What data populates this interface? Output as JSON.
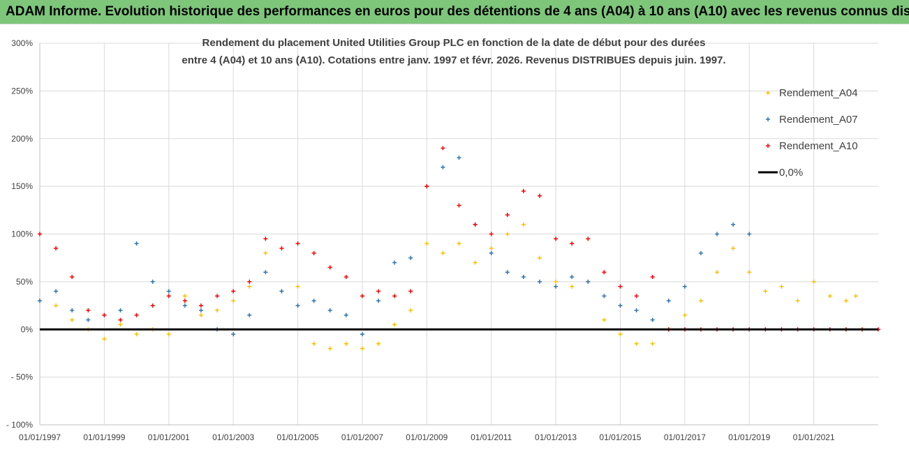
{
  "banner": {
    "title": "ADAM Informe. Evolution historique des performances en euros pour des détentions de 4 ans (A04) à 10 ans (A10) avec les revenus connus distribués"
  },
  "colors": {
    "banner": "#7dc67a",
    "A04": "#ffc000",
    "A07": "#2e75b6",
    "A10": "#ff0000",
    "zero": "#000000",
    "grid": "#d9d9d9"
  },
  "chart_data": {
    "type": "scatter",
    "title_line1": "Rendement du placement United Utilities Group PLC en fonction de la date de début pour des durées",
    "title_line2": "entre 4 (A04) et 10 ans (A10). Cotations entre janv. 1997 et févr. 2026. Revenus DISTRIBUES depuis juin. 1997.",
    "ylim": [
      -100,
      300
    ],
    "yticks": [
      300,
      250,
      200,
      150,
      100,
      50,
      0,
      -50,
      -100
    ],
    "ytick_labels": [
      "300%",
      "250%",
      "200%",
      "150%",
      "100%",
      "50%",
      "0%",
      "- 50%",
      "- 100%"
    ],
    "xlim": [
      1997.0,
      2023.0
    ],
    "xticks": [
      1997,
      1999,
      2001,
      2003,
      2005,
      2007,
      2009,
      2011,
      2013,
      2015,
      2017,
      2019,
      2021
    ],
    "xtick_labels": [
      "01/01/1997",
      "01/01/1999",
      "01/01/2001",
      "01/01/2003",
      "01/01/2005",
      "01/01/2007",
      "01/01/2009",
      "01/01/2011",
      "01/01/2013",
      "01/01/2015",
      "01/01/2017",
      "01/01/2019",
      "01/01/2021"
    ],
    "legend": [
      "Rendement_A04",
      "Rendement_A07",
      "Rendement_A10",
      "0,0%"
    ],
    "series": [
      {
        "name": "Rendement_A04",
        "x": [
          1997.0,
          1997.5,
          1998.0,
          1998.5,
          1999.0,
          1999.5,
          2000.0,
          2000.5,
          2001.0,
          2001.5,
          2002.0,
          2002.5,
          2003.0,
          2003.5,
          2004.0,
          2004.5,
          2005.0,
          2005.5,
          2006.0,
          2006.5,
          2007.0,
          2007.5,
          2008.0,
          2008.5,
          2009.0,
          2009.5,
          2010.0,
          2010.5,
          2011.0,
          2011.5,
          2012.0,
          2012.5,
          2013.0,
          2013.5,
          2014.0,
          2014.5,
          2015.0,
          2015.5,
          2016.0,
          2016.5,
          2017.0,
          2017.5,
          2018.0,
          2018.5,
          2019.0,
          2019.5,
          2020.0,
          2020.5,
          2021.0,
          2021.5,
          2022.0,
          2022.3
        ],
        "values": [
          30,
          25,
          10,
          0,
          -10,
          5,
          -5,
          0,
          -5,
          35,
          15,
          20,
          30,
          45,
          80,
          40,
          45,
          -15,
          -20,
          -15,
          -20,
          -15,
          5,
          20,
          90,
          80,
          90,
          70,
          85,
          100,
          110,
          75,
          50,
          45,
          50,
          10,
          -5,
          -15,
          -15,
          0,
          15,
          30,
          60,
          85,
          60,
          40,
          45,
          30,
          50,
          35,
          30,
          35
        ]
      },
      {
        "name": "Rendement_A07",
        "x": [
          1997.0,
          1997.5,
          1998.0,
          1998.5,
          1999.0,
          1999.5,
          2000.0,
          2000.5,
          2001.0,
          2001.5,
          2002.0,
          2002.5,
          2003.0,
          2003.5,
          2004.0,
          2004.5,
          2005.0,
          2005.5,
          2006.0,
          2006.5,
          2007.0,
          2007.5,
          2008.0,
          2008.5,
          2009.0,
          2009.5,
          2010.0,
          2010.5,
          2011.0,
          2011.5,
          2012.0,
          2012.5,
          2013.0,
          2013.5,
          2014.0,
          2014.5,
          2015.0,
          2015.5,
          2016.0,
          2016.5,
          2017.0,
          2017.5,
          2018.0,
          2018.5,
          2019.0
        ],
        "values": [
          30,
          40,
          20,
          10,
          15,
          20,
          90,
          50,
          40,
          25,
          20,
          0,
          -5,
          15,
          60,
          40,
          25,
          30,
          20,
          15,
          -5,
          30,
          70,
          75,
          150,
          170,
          180,
          110,
          80,
          60,
          55,
          50,
          45,
          55,
          50,
          35,
          25,
          20,
          10,
          30,
          45,
          80,
          100,
          110,
          100
        ]
      },
      {
        "name": "Rendement_A10",
        "x": [
          1997.0,
          1997.5,
          1998.0,
          1998.5,
          1999.0,
          1999.5,
          2000.0,
          2000.5,
          2001.0,
          2001.5,
          2002.0,
          2002.5,
          2003.0,
          2003.5,
          2004.0,
          2004.5,
          2005.0,
          2005.5,
          2006.0,
          2006.5,
          2007.0,
          2007.5,
          2008.0,
          2008.5,
          2009.0,
          2009.5,
          2010.0,
          2010.5,
          2011.0,
          2011.5,
          2012.0,
          2012.5,
          2013.0,
          2013.5,
          2014.0,
          2014.5,
          2015.0,
          2015.5,
          2016.0,
          2016.5,
          2017.0,
          2017.5,
          2018.0,
          2018.5,
          2019.0,
          2019.5,
          2020.0,
          2020.5,
          2021.0,
          2021.5,
          2022.0,
          2022.5,
          2023.0
        ],
        "values": [
          100,
          85,
          55,
          20,
          15,
          10,
          15,
          25,
          35,
          30,
          25,
          35,
          40,
          50,
          95,
          85,
          90,
          80,
          65,
          55,
          35,
          40,
          35,
          40,
          150,
          190,
          130,
          110,
          100,
          120,
          145,
          140,
          95,
          90,
          95,
          60,
          45,
          35,
          55,
          0,
          0,
          0,
          0,
          0,
          0,
          0,
          0,
          0,
          0,
          0,
          0,
          0,
          0
        ]
      },
      {
        "name": "0,0%",
        "x": [
          1997.0,
          2023.0
        ],
        "values": [
          0,
          0
        ]
      }
    ]
  }
}
